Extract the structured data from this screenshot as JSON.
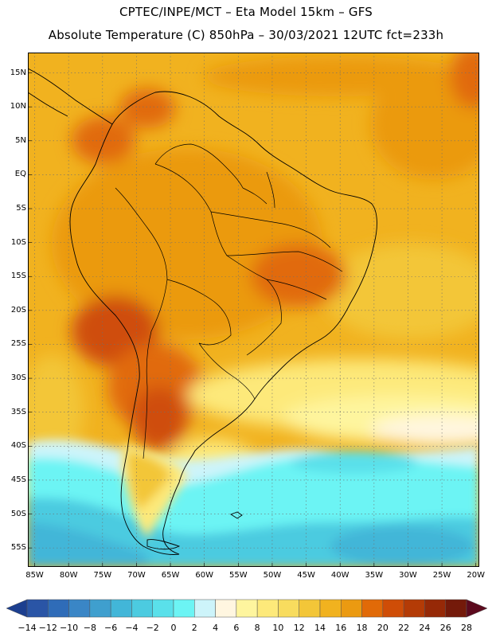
{
  "title": {
    "line1": "CPTEC/INPE/MCT –  Eta Model 15km – GFS",
    "line2": "Absolute Temperature (C) 850hPa – 30/03/2021 12UTC fct=233h"
  },
  "map": {
    "lon_range": [
      -86,
      -19.5
    ],
    "lat_range": [
      18,
      -57.8
    ],
    "lat_ticks": [
      {
        "value": 15,
        "label": "15N"
      },
      {
        "value": 10,
        "label": "10N"
      },
      {
        "value": 5,
        "label": "5N"
      },
      {
        "value": 0,
        "label": "EQ"
      },
      {
        "value": -5,
        "label": "5S"
      },
      {
        "value": -10,
        "label": "10S"
      },
      {
        "value": -15,
        "label": "15S"
      },
      {
        "value": -20,
        "label": "20S"
      },
      {
        "value": -25,
        "label": "25S"
      },
      {
        "value": -30,
        "label": "30S"
      },
      {
        "value": -35,
        "label": "35S"
      },
      {
        "value": -40,
        "label": "40S"
      },
      {
        "value": -45,
        "label": "45S"
      },
      {
        "value": -50,
        "label": "50S"
      },
      {
        "value": -55,
        "label": "55S"
      }
    ],
    "lon_ticks": [
      {
        "value": -85,
        "label": "85W"
      },
      {
        "value": -80,
        "label": "80W"
      },
      {
        "value": -75,
        "label": "75W"
      },
      {
        "value": -70,
        "label": "70W"
      },
      {
        "value": -65,
        "label": "65W"
      },
      {
        "value": -60,
        "label": "60W"
      },
      {
        "value": -55,
        "label": "55W"
      },
      {
        "value": -50,
        "label": "50W"
      },
      {
        "value": -45,
        "label": "45W"
      },
      {
        "value": -40,
        "label": "40W"
      },
      {
        "value": -35,
        "label": "35W"
      },
      {
        "value": -30,
        "label": "30W"
      },
      {
        "value": -25,
        "label": "25W"
      },
      {
        "value": -20,
        "label": "20W"
      }
    ],
    "gridlines": true
  },
  "colorbar": {
    "labels": [
      "-14",
      "-12",
      "-10",
      "-8",
      "-6",
      "-4",
      "-2",
      "0",
      "2",
      "4",
      "6",
      "8",
      "10",
      "12",
      "14",
      "16",
      "18",
      "20",
      "22",
      "24",
      "26",
      "28"
    ],
    "colors": [
      "#1c3f8f",
      "#2a55a6",
      "#2f6cb8",
      "#3a86c6",
      "#3f9fce",
      "#42b6d8",
      "#4ccbe0",
      "#5ae0ea",
      "#6cf4f4",
      "#cdf4fa",
      "#fff6e0",
      "#fef59e",
      "#fde97a",
      "#f8dc5e",
      "#f3c638",
      "#f1b21f",
      "#eb9a11",
      "#e16a08",
      "#cf4d07",
      "#b43b06",
      "#962907",
      "#741a0a",
      "#5c0a1e"
    ]
  }
}
